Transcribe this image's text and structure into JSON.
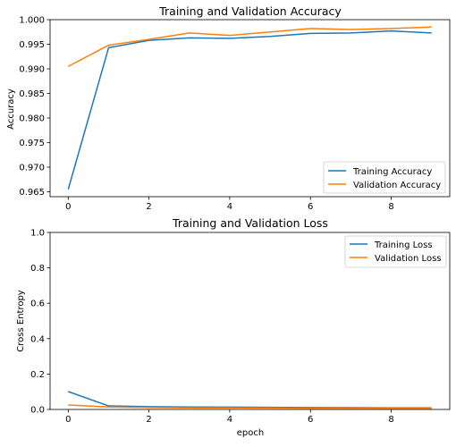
{
  "chart_data": [
    {
      "type": "line",
      "title": "Training and Validation Accuracy",
      "xlabel": "",
      "ylabel": "Accuracy",
      "xlim": [
        -0.45,
        9.45
      ],
      "ylim": [
        0.964,
        1.0
      ],
      "xticks": [
        0,
        2,
        4,
        6,
        8
      ],
      "xtick_labels": [
        "0",
        "2",
        "4",
        "6",
        "8"
      ],
      "yticks": [
        0.965,
        0.97,
        0.975,
        0.98,
        0.985,
        0.99,
        0.995,
        1.0
      ],
      "ytick_labels": [
        "0.965",
        "0.970",
        "0.975",
        "0.980",
        "0.985",
        "0.990",
        "0.995",
        "1.000"
      ],
      "legend_position": "lower-right",
      "x": [
        0,
        1,
        2,
        3,
        4,
        5,
        6,
        7,
        8,
        9
      ],
      "series": [
        {
          "name": "Training Accuracy",
          "color": "#1f77b4",
          "values": [
            0.9655,
            0.9943,
            0.9958,
            0.9963,
            0.9962,
            0.9966,
            0.9972,
            0.9973,
            0.9977,
            0.9973
          ]
        },
        {
          "name": "Validation Accuracy",
          "color": "#ff7f0e",
          "values": [
            0.9905,
            0.9948,
            0.996,
            0.9973,
            0.9968,
            0.9975,
            0.9982,
            0.998,
            0.9982,
            0.9985
          ]
        }
      ]
    },
    {
      "type": "line",
      "title": "Training and Validation Loss",
      "xlabel": "epoch",
      "ylabel": "Cross Entropy",
      "xlim": [
        -0.45,
        9.45
      ],
      "ylim": [
        0.0,
        1.0
      ],
      "xticks": [
        0,
        2,
        4,
        6,
        8
      ],
      "xtick_labels": [
        "0",
        "2",
        "4",
        "6",
        "8"
      ],
      "yticks": [
        0.0,
        0.2,
        0.4,
        0.6,
        0.8,
        1.0
      ],
      "ytick_labels": [
        "0.0",
        "0.2",
        "0.4",
        "0.6",
        "0.8",
        "1.0"
      ],
      "legend_position": "upper-right",
      "x": [
        0,
        1,
        2,
        3,
        4,
        5,
        6,
        7,
        8,
        9
      ],
      "series": [
        {
          "name": "Training Loss",
          "color": "#1f77b4",
          "values": [
            0.101,
            0.02,
            0.016,
            0.014,
            0.013,
            0.012,
            0.011,
            0.01,
            0.009,
            0.009
          ]
        },
        {
          "name": "Validation Loss",
          "color": "#ff7f0e",
          "values": [
            0.025,
            0.014,
            0.011,
            0.009,
            0.009,
            0.008,
            0.007,
            0.007,
            0.006,
            0.006
          ]
        }
      ]
    }
  ]
}
